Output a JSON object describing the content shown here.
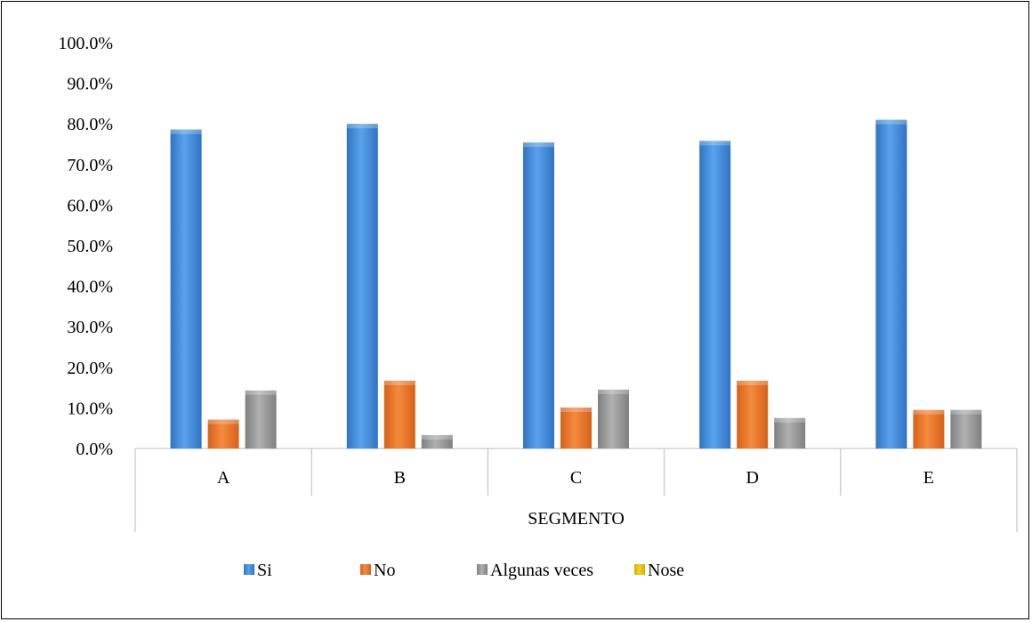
{
  "chart_data": {
    "type": "bar",
    "title": "",
    "xlabel": "SEGMENTO",
    "ylabel": "",
    "categories": [
      "A",
      "B",
      "C",
      "D",
      "E"
    ],
    "series": [
      {
        "name": "Si",
        "color": "#3f8ad8",
        "values": [
          78.6,
          80.0,
          75.4,
          75.8,
          81.0
        ]
      },
      {
        "name": "No",
        "color": "#e8762a",
        "values": [
          7.1,
          16.7,
          10.1,
          16.7,
          9.5
        ]
      },
      {
        "name": "Algunas veces",
        "color": "#9a9a9a",
        "values": [
          14.3,
          3.3,
          14.5,
          7.5,
          9.5
        ]
      },
      {
        "name": "Nose",
        "color": "#e8c000",
        "values": [
          0,
          0,
          0,
          0,
          0
        ]
      }
    ],
    "ylim": [
      0,
      100
    ],
    "yticks": [
      "0.0%",
      "10.0%",
      "20.0%",
      "30.0%",
      "40.0%",
      "50.0%",
      "60.0%",
      "70.0%",
      "80.0%",
      "90.0%",
      "100.0%"
    ],
    "grid": false,
    "legend_position": "bottom"
  }
}
